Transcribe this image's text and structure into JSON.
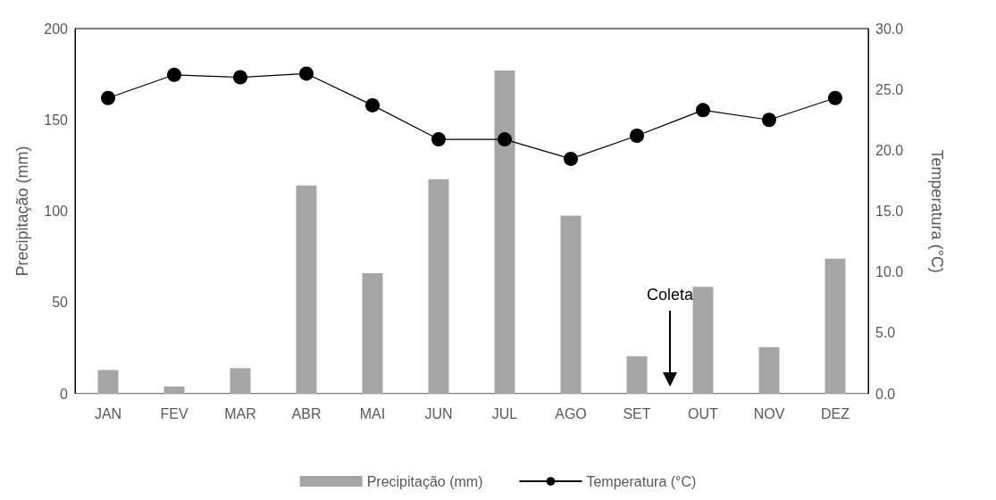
{
  "chart_data": {
    "type": "bar",
    "categories": [
      "JAN",
      "FEV",
      "MAR",
      "ABR",
      "MAI",
      "JUN",
      "JUL",
      "AGO",
      "SET",
      "OUT",
      "NOV",
      "DEZ"
    ],
    "ylabel": "Precipitação (mm)",
    "y2label": "Temperatura (°C)",
    "series": [
      {
        "name": "Precipitação (mm)",
        "color": "#a5a5a5",
        "values": [
          13,
          4,
          14,
          114,
          66,
          117.5,
          177,
          97.5,
          20.5,
          58.5,
          25.5,
          74
        ]
      },
      {
        "name": "Temperatura (°C)",
        "type": "line",
        "axis": "y2",
        "color": "#000000",
        "marker": "circle",
        "values": [
          24.3,
          26.2,
          26.0,
          26.3,
          23.7,
          20.9,
          20.9,
          19.3,
          21.2,
          23.3,
          22.5,
          24.3
        ]
      }
    ],
    "ylim": [
      0,
      200
    ],
    "yticks": [
      0,
      50,
      100,
      150,
      200
    ],
    "y2lim": [
      0,
      30
    ],
    "y2ticks": [
      {
        "value": 0,
        "label": "0.0"
      },
      {
        "value": 5,
        "label": "5.0"
      },
      {
        "value": 10,
        "label": "10.0"
      },
      {
        "value": 15,
        "label": "15.0"
      },
      {
        "value": 20,
        "label": "20.0"
      },
      {
        "value": 25,
        "label": "25.0"
      },
      {
        "value": 30,
        "label": "30.0"
      }
    ],
    "annotations": [
      "Coleta"
    ],
    "grid": false,
    "legend": "bottom"
  }
}
